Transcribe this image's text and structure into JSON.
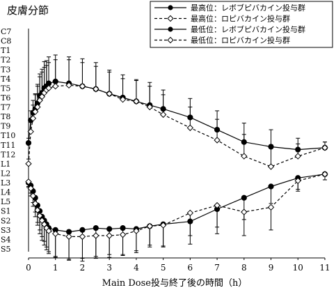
{
  "chart_data": {
    "type": "line",
    "title": "皮膚分節",
    "xlabel": "Main Dose投与終了後の時間（h）",
    "ylabel": "",
    "xlim": [
      0,
      11
    ],
    "x_ticks": [
      "0",
      "1",
      "2",
      "3",
      "4",
      "5",
      "6",
      "7",
      "8",
      "9",
      "10",
      "11"
    ],
    "y_categories": [
      "C7",
      "C8",
      "T1",
      "T2",
      "T3",
      "T4",
      "T5",
      "T6",
      "T7",
      "T8",
      "T9",
      "T10",
      "T11",
      "T12",
      "L1",
      "L2",
      "L3",
      "L4",
      "L5",
      "S1",
      "S2",
      "S3",
      "S4",
      "S5"
    ],
    "grid": false,
    "legend_position": "top-right",
    "series": [
      {
        "name": "最高位：レボブピバカイン投与群",
        "marker": "filled-circle",
        "line": "solid",
        "x": [
          0,
          0.083,
          0.167,
          0.25,
          0.333,
          0.417,
          0.5,
          0.583,
          0.667,
          0.75,
          1,
          1.5,
          2,
          2.5,
          3,
          3.5,
          4,
          4.5,
          5,
          6,
          7,
          8,
          9,
          10,
          11
        ],
        "y": [
          11.8,
          9.4,
          8.6,
          8.2,
          7.6,
          6.8,
          6.5,
          6.0,
          5.8,
          5.5,
          5.3,
          5.5,
          5.8,
          6.1,
          6.6,
          7.0,
          7.4,
          7.8,
          8.2,
          9.1,
          10.4,
          11.7,
          12.2,
          12.5,
          12.3
        ],
        "err": [
          0.5,
          1.0,
          1.3,
          1.6,
          2.0,
          2.3,
          2.5,
          2.8,
          2.7,
          2.8,
          2.8,
          2.8,
          2.9,
          2.8,
          2.5,
          2.4,
          2.3,
          2.4,
          2.0,
          2.0,
          2.0,
          2.0,
          1.8,
          1.2,
          0.6
        ]
      },
      {
        "name": "最高位：ロピバカイン投与群",
        "marker": "open-diamond",
        "line": "dashed",
        "x": [
          0,
          0.083,
          0.167,
          0.25,
          0.333,
          0.417,
          0.5,
          0.583,
          0.667,
          0.75,
          1,
          1.5,
          2,
          2.5,
          3,
          3.5,
          4,
          4.5,
          5,
          6,
          7,
          8,
          9,
          10,
          11
        ],
        "y": [
          14.0,
          10.6,
          9.2,
          8.5,
          8.0,
          7.3,
          6.9,
          6.5,
          6.2,
          6.0,
          5.8,
          5.7,
          5.8,
          6.1,
          6.6,
          7.2,
          7.4,
          8.0,
          8.8,
          10.2,
          11.5,
          13.2,
          14.3,
          13.2,
          12.3
        ],
        "err": [
          0.5,
          1.0,
          1.4,
          1.8,
          2.2,
          2.5,
          2.6,
          2.7,
          2.6,
          2.7,
          2.8,
          2.7,
          2.5,
          2.4,
          2.3,
          2.2,
          2.2,
          2.2,
          2.1,
          2.2,
          2.2,
          2.3,
          2.3,
          1.3,
          0.6
        ]
      },
      {
        "name": "最低位：レボブピバカイン投与群",
        "marker": "filled-circle",
        "line": "solid",
        "x": [
          0,
          0.083,
          0.167,
          0.25,
          0.333,
          0.417,
          0.5,
          0.583,
          0.667,
          0.75,
          1,
          1.5,
          2,
          2.5,
          3,
          3.5,
          4,
          4.5,
          5,
          6,
          7,
          8,
          9,
          10,
          11
        ],
        "y": [
          16.0,
          16.3,
          16.9,
          17.6,
          18.4,
          19.0,
          19.6,
          20.0,
          20.4,
          20.8,
          21.0,
          21.2,
          21.0,
          20.8,
          20.9,
          20.8,
          20.9,
          20.6,
          20.4,
          20.1,
          18.8,
          17.6,
          16.4,
          15.5,
          15.1
        ],
        "err": [
          0.5,
          0.8,
          1.2,
          1.5,
          1.8,
          2.0,
          2.1,
          2.2,
          2.4,
          2.5,
          2.8,
          2.9,
          3.0,
          3.0,
          2.7,
          2.8,
          2.5,
          2.2,
          2.4,
          2.4,
          2.6,
          2.3,
          1.8,
          1.2,
          0.6
        ]
      },
      {
        "name": "最低位：ロピバカイン投与群",
        "marker": "open-diamond",
        "line": "dashed",
        "x": [
          0,
          0.083,
          0.167,
          0.25,
          0.333,
          0.417,
          0.5,
          0.583,
          0.667,
          0.75,
          1,
          1.5,
          2,
          2.5,
          3,
          3.5,
          4,
          4.5,
          5,
          6,
          7,
          8,
          9,
          10,
          11
        ],
        "y": [
          15.9,
          16.6,
          17.4,
          18.2,
          18.9,
          19.5,
          20.0,
          20.4,
          20.8,
          21.1,
          21.4,
          21.7,
          21.7,
          21.6,
          21.6,
          21.5,
          21.1,
          20.6,
          20.5,
          19.2,
          18.4,
          19.1,
          18.6,
          15.8,
          15.1
        ],
        "err": [
          0.5,
          0.8,
          1.1,
          1.4,
          1.6,
          1.9,
          2.1,
          2.2,
          2.3,
          2.4,
          2.5,
          2.5,
          2.6,
          2.4,
          2.3,
          2.2,
          2.1,
          2.0,
          2.2,
          2.4,
          2.3,
          2.5,
          2.4,
          1.1,
          0.6
        ]
      }
    ]
  }
}
